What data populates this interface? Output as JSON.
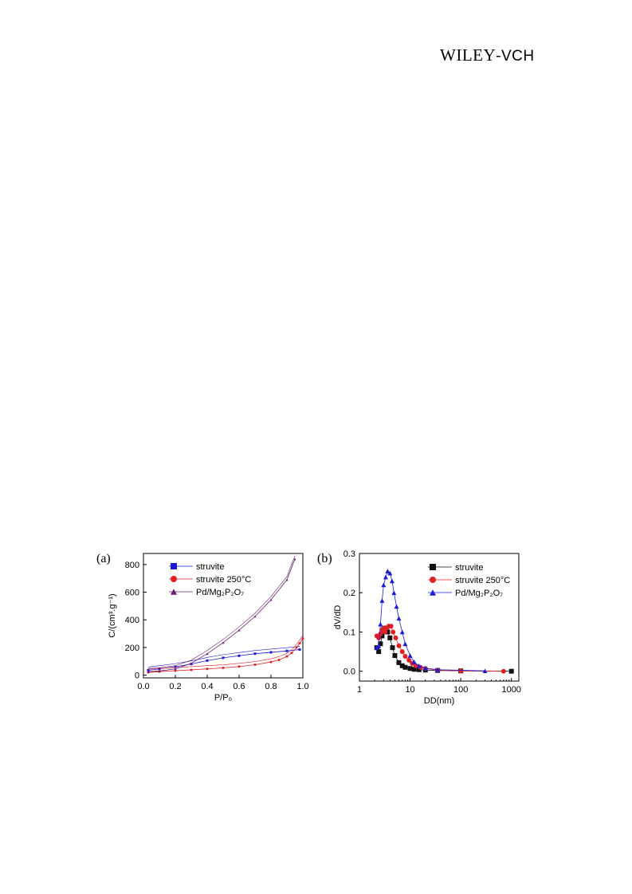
{
  "header": {
    "logo_main": "WILEY",
    "logo_sub": "-VCH"
  },
  "figure": {
    "panel_a_label": "(a)",
    "panel_b_label": "(b)"
  },
  "chart_data": [
    {
      "type": "line",
      "panel": "(a)",
      "xlabel": "P/P₀",
      "ylabel": "C/(cm³.g⁻¹)",
      "xlim": [
        0.0,
        1.0
      ],
      "ylim": [
        -20,
        880
      ],
      "xticks": [
        "0.0",
        "0.2",
        "0.4",
        "0.6",
        "0.8",
        "1.0"
      ],
      "yticks": [
        "0",
        "200",
        "400",
        "600",
        "800"
      ],
      "legend_position": "top-left",
      "series": [
        {
          "name": "struvite",
          "color": "#1b1bd6",
          "marker": "square",
          "x": [
            0.03,
            0.1,
            0.2,
            0.3,
            0.4,
            0.5,
            0.6,
            0.7,
            0.8,
            0.9,
            0.98
          ],
          "y": [
            35,
            45,
            60,
            80,
            105,
            125,
            140,
            155,
            165,
            175,
            185
          ]
        },
        {
          "name": "struvite 250°C",
          "color": "#e02020",
          "marker": "circle",
          "x": [
            0.03,
            0.1,
            0.2,
            0.3,
            0.4,
            0.5,
            0.6,
            0.7,
            0.8,
            0.85,
            0.9,
            0.93,
            0.96,
            0.98,
            1.0
          ],
          "y": [
            20,
            25,
            32,
            38,
            45,
            52,
            62,
            75,
            95,
            110,
            135,
            160,
            200,
            230,
            265
          ]
        },
        {
          "name": "Pd/Mg₂P₂O₇",
          "color": "#6a1a70",
          "marker": "triangle",
          "x": [
            0.03,
            0.1,
            0.2,
            0.3,
            0.4,
            0.5,
            0.6,
            0.7,
            0.8,
            0.9,
            0.95
          ],
          "y": [
            25,
            30,
            45,
            85,
            155,
            235,
            325,
            425,
            545,
            690,
            840
          ]
        }
      ]
    },
    {
      "type": "scatter",
      "panel": "(b)",
      "xlabel": "DD(nm)",
      "ylabel": "dV/dD",
      "xscale": "log",
      "xlim": [
        1,
        1400
      ],
      "ylim": [
        -0.025,
        0.3
      ],
      "xticks": [
        "1",
        "10",
        "100",
        "1000"
      ],
      "yticks": [
        "0.0",
        "0.1",
        "0.2",
        "0.3"
      ],
      "legend_position": "top-right",
      "series": [
        {
          "name": "struvite",
          "color": "#111111",
          "marker": "square",
          "x": [
            2.2,
            2.4,
            2.6,
            2.8,
            3.0,
            3.3,
            3.6,
            4.0,
            4.5,
            5.0,
            6.0,
            7.0,
            8.0,
            10,
            12,
            15,
            20,
            35,
            100,
            1000
          ],
          "y": [
            0.06,
            0.05,
            0.07,
            0.09,
            0.105,
            0.11,
            0.1,
            0.085,
            0.06,
            0.04,
            0.022,
            0.014,
            0.01,
            0.007,
            0.005,
            0.004,
            0.003,
            0.002,
            0.001,
            0.0
          ]
        },
        {
          "name": "struvite 250°C",
          "color": "#e02020",
          "marker": "circle",
          "x": [
            2.2,
            2.4,
            2.6,
            2.8,
            3.0,
            3.2,
            3.5,
            3.8,
            4.2,
            4.6,
            5.2,
            6.0,
            7.0,
            8.0,
            9.5,
            11,
            13,
            16,
            20,
            35,
            100,
            700
          ],
          "y": [
            0.09,
            0.085,
            0.095,
            0.105,
            0.11,
            0.1,
            0.11,
            0.115,
            0.115,
            0.1,
            0.085,
            0.065,
            0.05,
            0.038,
            0.028,
            0.02,
            0.014,
            0.01,
            0.007,
            0.003,
            0.001,
            0.0
          ]
        },
        {
          "name": "Pd/Mg₂P₂O₇",
          "color": "#1b1bd6",
          "marker": "triangle",
          "x": [
            2.2,
            2.4,
            2.6,
            2.8,
            3.0,
            3.3,
            3.6,
            4.0,
            4.4,
            4.8,
            5.4,
            6.0,
            7.0,
            8.0,
            10,
            12,
            15,
            20,
            35,
            300
          ],
          "y": [
            0.06,
            0.065,
            0.12,
            0.18,
            0.22,
            0.24,
            0.255,
            0.25,
            0.23,
            0.2,
            0.165,
            0.135,
            0.1,
            0.07,
            0.04,
            0.024,
            0.014,
            0.008,
            0.004,
            0.001
          ]
        }
      ]
    }
  ]
}
